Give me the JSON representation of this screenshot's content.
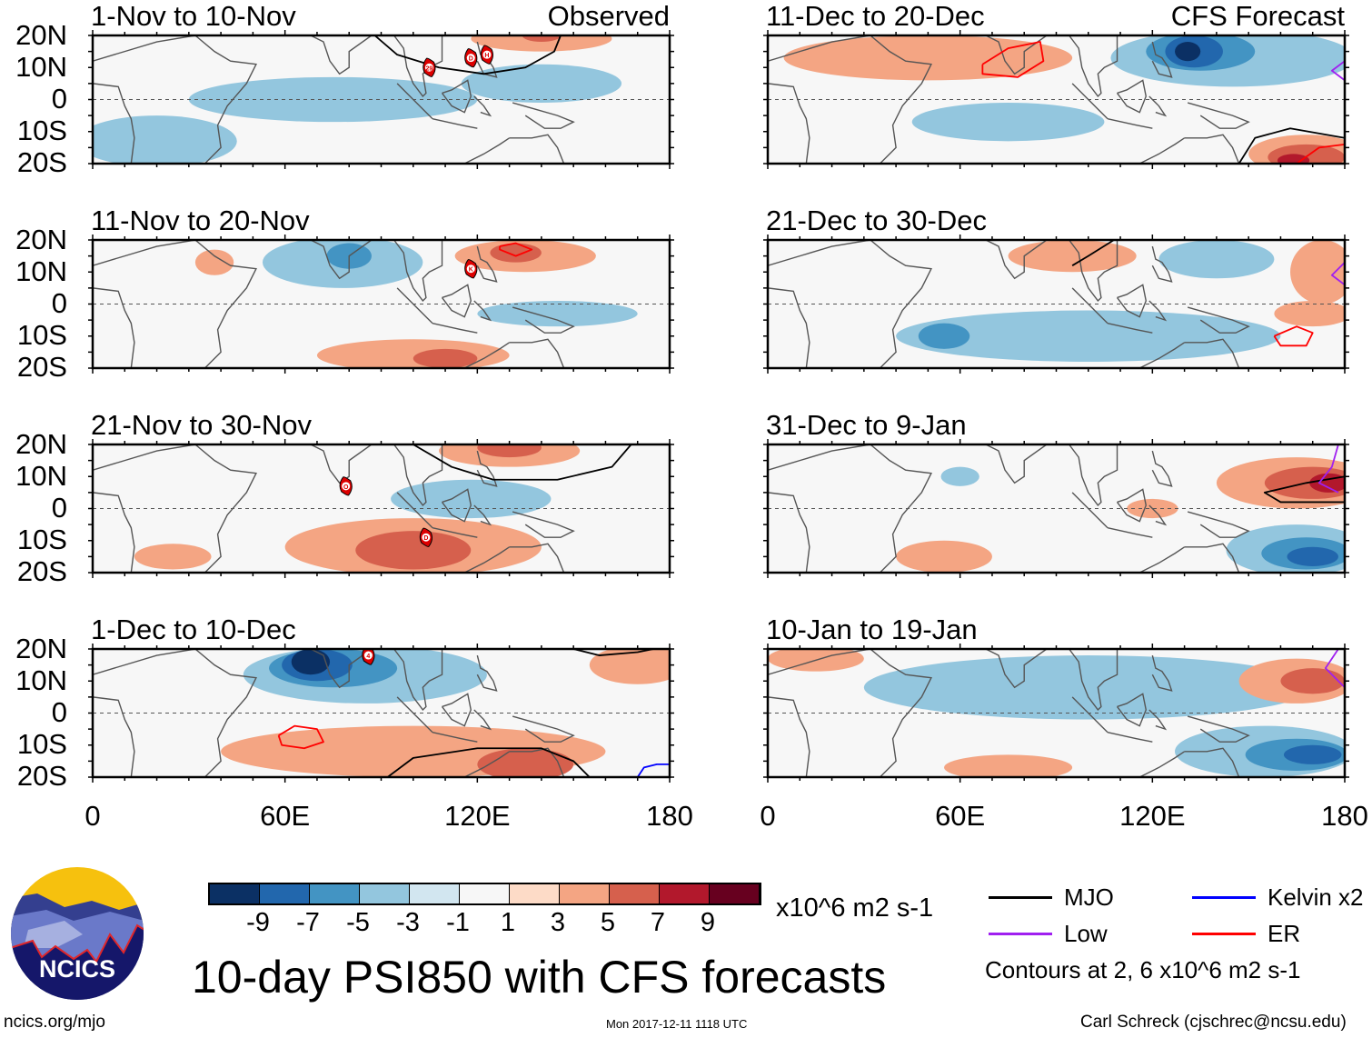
{
  "header": {
    "left_label": "Observed",
    "right_label": "CFS Forecast"
  },
  "axes": {
    "lat_labels": [
      "20N",
      "10N",
      "0",
      "10S",
      "20S"
    ],
    "lon_labels": [
      "0",
      "60E",
      "120E",
      "180"
    ]
  },
  "chart_data": {
    "type": "heatmap",
    "title": "10-day PSI850 with CFS forecasts",
    "units": "x10^6 m2 s-1",
    "lon_range": [
      0,
      180
    ],
    "lat_range": [
      -20,
      20
    ],
    "colorbar": {
      "ticks": [
        "-9",
        "-7",
        "-5",
        "-3",
        "-1",
        "1",
        "3",
        "5",
        "7",
        "9"
      ],
      "colors": [
        "#0b3064",
        "#2267ad",
        "#4394c3",
        "#93c6de",
        "#d2e6f0",
        "#f7f7f7",
        "#fddbc7",
        "#f4a583",
        "#d6604d",
        "#b2182c",
        "#67001f"
      ]
    },
    "panels": [
      {
        "title": "1-Nov to 10-Nov",
        "anomalies": [
          {
            "lon": 20,
            "lat": -13,
            "rlon": 25,
            "rlat": 8,
            "level": -2
          },
          {
            "lon": 75,
            "lat": 0,
            "rlon": 45,
            "rlat": 7,
            "level": -2
          },
          {
            "lon": 140,
            "lat": 5,
            "rlon": 25,
            "rlat": 6,
            "level": -2
          },
          {
            "lon": 140,
            "lat": 19,
            "rlon": 22,
            "rlat": 4,
            "level": 2
          },
          {
            "lon": 140,
            "lat": 20,
            "rlon": 6,
            "rlat": 2,
            "level": 3
          }
        ],
        "contours": [
          {
            "type": "MJO",
            "points": [
              [
                88,
                20
              ],
              [
                95,
                14
              ],
              [
                108,
                10
              ],
              [
                122,
                8
              ],
              [
                135,
                10
              ],
              [
                144,
                15
              ],
              [
                146,
                20
              ]
            ]
          }
        ],
        "storms": [
          {
            "label": "29",
            "lon": 105,
            "lat": 10
          },
          {
            "label": "D",
            "lon": 118,
            "lat": 13
          },
          {
            "label": "H",
            "lon": 123,
            "lat": 14
          }
        ]
      },
      {
        "title": "11-Nov to 20-Nov",
        "anomalies": [
          {
            "lon": 78,
            "lat": 13,
            "rlon": 25,
            "rlat": 8,
            "level": -2
          },
          {
            "lon": 80,
            "lat": 15,
            "rlon": 7,
            "rlat": 4,
            "level": -3
          },
          {
            "lon": 145,
            "lat": -3,
            "rlon": 25,
            "rlat": 4,
            "level": -2
          },
          {
            "lon": 135,
            "lat": 15,
            "rlon": 22,
            "rlat": 5,
            "level": 2
          },
          {
            "lon": 132,
            "lat": 16,
            "rlon": 8,
            "rlat": 3,
            "level": 3
          },
          {
            "lon": 100,
            "lat": -16,
            "rlon": 30,
            "rlat": 5,
            "level": 2
          },
          {
            "lon": 110,
            "lat": -17,
            "rlon": 10,
            "rlat": 3,
            "level": 3
          },
          {
            "lon": 38,
            "lat": 13,
            "rlon": 6,
            "rlat": 4,
            "level": 2
          }
        ],
        "contours": [
          {
            "type": "ER",
            "points": [
              [
                127,
                18
              ],
              [
                132,
                19
              ],
              [
                137,
                17
              ],
              [
                132,
                15
              ],
              [
                127,
                17
              ],
              [
                127,
                18
              ]
            ]
          }
        ],
        "storms": [
          {
            "label": "K",
            "lon": 118,
            "lat": 11
          }
        ]
      },
      {
        "title": "21-Nov to 30-Nov",
        "anomalies": [
          {
            "lon": 130,
            "lat": 18,
            "rlon": 22,
            "rlat": 5,
            "level": 2
          },
          {
            "lon": 130,
            "lat": 19,
            "rlon": 10,
            "rlat": 3,
            "level": 3
          },
          {
            "lon": 118,
            "lat": 3,
            "rlon": 25,
            "rlat": 6,
            "level": -2
          },
          {
            "lon": 100,
            "lat": -12,
            "rlon": 40,
            "rlat": 9,
            "level": 2
          },
          {
            "lon": 100,
            "lat": -13,
            "rlon": 18,
            "rlat": 6,
            "level": 3
          },
          {
            "lon": 25,
            "lat": -15,
            "rlon": 12,
            "rlat": 4,
            "level": 2
          }
        ],
        "contours": [
          {
            "type": "MJO",
            "points": [
              [
                100,
                20
              ],
              [
                112,
                13
              ],
              [
                125,
                9
              ],
              [
                145,
                9
              ],
              [
                162,
                13
              ],
              [
                168,
                20
              ]
            ]
          }
        ],
        "storms": [
          {
            "label": "O",
            "lon": 79,
            "lat": 7
          },
          {
            "label": "D",
            "lon": 104,
            "lat": -9
          }
        ]
      },
      {
        "title": "1-Dec to 10-Dec",
        "anomalies": [
          {
            "lon": 85,
            "lat": 12,
            "rlon": 38,
            "rlat": 9,
            "level": -2
          },
          {
            "lon": 75,
            "lat": 14,
            "rlon": 20,
            "rlat": 6,
            "level": -3
          },
          {
            "lon": 70,
            "lat": 15,
            "rlon": 11,
            "rlat": 5,
            "level": -4
          },
          {
            "lon": 68,
            "lat": 16,
            "rlon": 6,
            "rlat": 4,
            "level": -5
          },
          {
            "lon": 100,
            "lat": -12,
            "rlon": 60,
            "rlat": 8,
            "level": 2
          },
          {
            "lon": 135,
            "lat": -16,
            "rlon": 15,
            "rlat": 5,
            "level": 3
          },
          {
            "lon": 170,
            "lat": 15,
            "rlon": 15,
            "rlat": 6,
            "level": 2
          }
        ],
        "contours": [
          {
            "type": "ER",
            "points": [
              [
                58,
                -7
              ],
              [
                63,
                -4
              ],
              [
                70,
                -5
              ],
              [
                72,
                -9
              ],
              [
                66,
                -11
              ],
              [
                59,
                -10
              ],
              [
                58,
                -7
              ]
            ]
          },
          {
            "type": "MJO",
            "points": [
              [
                92,
                -20
              ],
              [
                100,
                -14
              ],
              [
                120,
                -11
              ],
              [
                140,
                -11
              ],
              [
                150,
                -15
              ],
              [
                155,
                -20
              ]
            ]
          },
          {
            "type": "MJO",
            "points": [
              [
                150,
                20
              ],
              [
                158,
                18
              ],
              [
                170,
                19
              ],
              [
                175,
                20
              ]
            ]
          },
          {
            "type": "Kelvin",
            "points": [
              [
                170,
                -20
              ],
              [
                172,
                -17
              ],
              [
                176,
                -16
              ],
              [
                180,
                -16
              ]
            ]
          }
        ],
        "storms": [
          {
            "label": "4",
            "lon": 86,
            "lat": 18
          }
        ]
      },
      {
        "title": "11-Dec to 20-Dec",
        "anomalies": [
          {
            "lon": 50,
            "lat": 13,
            "rlon": 45,
            "rlat": 7,
            "level": 2
          },
          {
            "lon": 145,
            "lat": 13,
            "rlon": 38,
            "rlat": 9,
            "level": -2
          },
          {
            "lon": 135,
            "lat": 15,
            "rlon": 17,
            "rlat": 6,
            "level": -3
          },
          {
            "lon": 133,
            "lat": 15,
            "rlon": 9,
            "rlat": 5,
            "level": -4
          },
          {
            "lon": 131,
            "lat": 15,
            "rlon": 4,
            "rlat": 3,
            "level": -5
          },
          {
            "lon": 70,
            "lat": -7,
            "rlon": 12,
            "rlat": 4,
            "level": -3
          },
          {
            "lon": 75,
            "lat": -7,
            "rlon": 30,
            "rlat": 6,
            "level": -2
          },
          {
            "lon": 168,
            "lat": -17,
            "rlon": 18,
            "rlat": 6,
            "level": 2
          },
          {
            "lon": 168,
            "lat": -18,
            "rlon": 12,
            "rlat": 4,
            "level": 3
          },
          {
            "lon": 164,
            "lat": -19,
            "rlon": 5,
            "rlat": 2,
            "level": 4
          }
        ],
        "contours": [
          {
            "type": "ER",
            "points": [
              [
                67,
                11
              ],
              [
                75,
                16
              ],
              [
                85,
                18
              ],
              [
                86,
                12
              ],
              [
                78,
                7
              ],
              [
                67,
                8
              ],
              [
                67,
                11
              ]
            ]
          },
          {
            "type": "MJO",
            "points": [
              [
                147,
                -20
              ],
              [
                152,
                -12
              ],
              [
                163,
                -9
              ],
              [
                180,
                -12
              ]
            ]
          },
          {
            "type": "ER",
            "points": [
              [
                165,
                -20
              ],
              [
                172,
                -15
              ],
              [
                180,
                -14
              ]
            ]
          },
          {
            "type": "Low",
            "points": [
              [
                180,
                6
              ],
              [
                176,
                9
              ],
              [
                180,
                12
              ]
            ]
          }
        ],
        "storms": []
      },
      {
        "title": "21-Dec to 30-Dec",
        "anomalies": [
          {
            "lon": 95,
            "lat": 15,
            "rlon": 20,
            "rlat": 5,
            "level": 2
          },
          {
            "lon": 173,
            "lat": 10,
            "rlon": 10,
            "rlat": 10,
            "level": 2
          },
          {
            "lon": 100,
            "lat": -10,
            "rlon": 60,
            "rlat": 8,
            "level": -2
          },
          {
            "lon": 55,
            "lat": -10,
            "rlon": 8,
            "rlat": 4,
            "level": -3
          },
          {
            "lon": 140,
            "lat": 14,
            "rlon": 18,
            "rlat": 6,
            "level": -2
          },
          {
            "lon": 170,
            "lat": -3,
            "rlon": 12,
            "rlat": 4,
            "level": 2
          }
        ],
        "contours": [
          {
            "type": "ER",
            "points": [
              [
                158,
                -10
              ],
              [
                165,
                -7
              ],
              [
                170,
                -9
              ],
              [
                168,
                -13
              ],
              [
                160,
                -13
              ],
              [
                158,
                -10
              ]
            ]
          },
          {
            "type": "MJO",
            "points": [
              [
                95,
                12
              ],
              [
                100,
                15
              ],
              [
                108,
                20
              ]
            ]
          },
          {
            "type": "Low",
            "points": [
              [
                180,
                6
              ],
              [
                176,
                9
              ],
              [
                180,
                13
              ]
            ]
          }
        ],
        "storms": []
      },
      {
        "title": "31-Dec to 9-Jan",
        "anomalies": [
          {
            "lon": 165,
            "lat": 8,
            "rlon": 25,
            "rlat": 8,
            "level": 2
          },
          {
            "lon": 170,
            "lat": 8,
            "rlon": 15,
            "rlat": 5,
            "level": 3
          },
          {
            "lon": 175,
            "lat": 8,
            "rlon": 6,
            "rlat": 3,
            "level": 4
          },
          {
            "lon": 165,
            "lat": -13,
            "rlon": 22,
            "rlat": 8,
            "level": -2
          },
          {
            "lon": 168,
            "lat": -14,
            "rlon": 14,
            "rlat": 5,
            "level": -3
          },
          {
            "lon": 170,
            "lat": -15,
            "rlon": 8,
            "rlat": 3,
            "level": -4
          },
          {
            "lon": 60,
            "lat": 10,
            "rlon": 6,
            "rlat": 3,
            "level": -2
          },
          {
            "lon": 55,
            "lat": -15,
            "rlon": 15,
            "rlat": 5,
            "level": 2
          },
          {
            "lon": 120,
            "lat": 0,
            "rlon": 8,
            "rlat": 3,
            "level": 2
          }
        ],
        "contours": [
          {
            "type": "MJO",
            "points": [
              [
                180,
                10
              ],
              [
                168,
                8
              ],
              [
                155,
                5
              ],
              [
                160,
                2
              ],
              [
                180,
                2
              ]
            ]
          },
          {
            "type": "Low",
            "points": [
              [
                178,
                20
              ],
              [
                176,
                13
              ],
              [
                172,
                8
              ],
              [
                178,
                5
              ]
            ]
          }
        ],
        "storms": []
      },
      {
        "title": "10-Jan to 19-Jan",
        "anomalies": [
          {
            "lon": 100,
            "lat": 8,
            "rlon": 70,
            "rlat": 10,
            "level": -2
          },
          {
            "lon": 165,
            "lat": 10,
            "rlon": 18,
            "rlat": 7,
            "level": 2
          },
          {
            "lon": 170,
            "lat": 10,
            "rlon": 10,
            "rlat": 4,
            "level": 3
          },
          {
            "lon": 155,
            "lat": -12,
            "rlon": 28,
            "rlat": 8,
            "level": -2
          },
          {
            "lon": 165,
            "lat": -13,
            "rlon": 16,
            "rlat": 5,
            "level": -3
          },
          {
            "lon": 170,
            "lat": -13,
            "rlon": 9,
            "rlat": 3,
            "level": -4
          },
          {
            "lon": 15,
            "lat": 17,
            "rlon": 15,
            "rlat": 4,
            "level": 2
          },
          {
            "lon": 75,
            "lat": -17,
            "rlon": 20,
            "rlat": 4,
            "level": 2
          }
        ],
        "contours": [
          {
            "type": "Low",
            "points": [
              [
                178,
                20
              ],
              [
                174,
                14
              ],
              [
                178,
                10
              ],
              [
                180,
                8
              ]
            ]
          }
        ],
        "storms": []
      }
    ]
  },
  "legend": {
    "units": "x10^6 m2 s-1",
    "items": [
      {
        "label": "MJO",
        "color": "#000000"
      },
      {
        "label": "Kelvin x2",
        "color": "#0000ff"
      },
      {
        "label": "Low",
        "color": "#a020f0"
      },
      {
        "label": "ER",
        "color": "#ff0000"
      }
    ],
    "note": "Contours at 2, 6 x10^6 m2 s-1"
  },
  "footer": {
    "logo_text": "NCICS",
    "url": "ncics.org/mjo",
    "timestamp": "Mon 2017-12-11 1118 UTC",
    "author": "Carl Schreck (cjschrec@ncsu.edu)"
  }
}
